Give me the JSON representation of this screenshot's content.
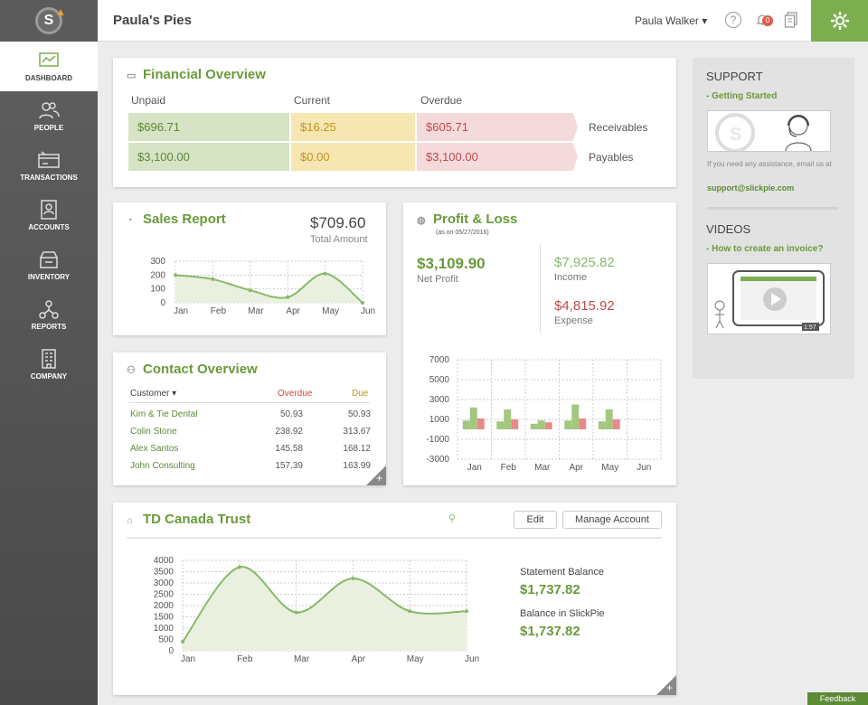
{
  "app": {
    "title": "Paula's Pies",
    "user": "Paula Walker ▾",
    "notifications": "0",
    "brand_color": "#7cae50"
  },
  "nav": [
    {
      "label": "DASHBOARD",
      "icon": "dashboard-icon",
      "active": true
    },
    {
      "label": "PEOPLE",
      "icon": "people-icon"
    },
    {
      "label": "TRANSACTIONS",
      "icon": "transactions-icon"
    },
    {
      "label": "ACCOUNTS",
      "icon": "accounts-icon"
    },
    {
      "label": "INVENTORY",
      "icon": "inventory-icon"
    },
    {
      "label": "REPORTS",
      "icon": "reports-icon"
    },
    {
      "label": "COMPANY",
      "icon": "company-icon"
    }
  ],
  "financial": {
    "title": "Financial Overview",
    "headers": [
      "Unpaid",
      "Current",
      "Overdue"
    ],
    "receivables": {
      "label": "Receivables",
      "unpaid": "$696.71",
      "current": "$16.25",
      "overdue": "$605.71"
    },
    "payables": {
      "label": "Payables",
      "unpaid": "$3,100.00",
      "current": "$0.00",
      "overdue": "$3,100.00"
    }
  },
  "sales": {
    "title": "Sales Report",
    "amount": "$709.60",
    "amount_label": "Total Amount"
  },
  "pl": {
    "title": "Profit & Loss",
    "date": "(as on 05/27/2016)",
    "net": "$3,109.90",
    "net_label": "Net Profit",
    "income": "$7,925.82",
    "income_label": "Income",
    "expense": "$4,815.92",
    "expense_label": "Expense"
  },
  "contacts": {
    "title": "Contact Overview",
    "headers": {
      "customer": "Customer ▾",
      "overdue": "Overdue",
      "due": "Due"
    },
    "rows": [
      {
        "name": "Kim & Tie Dental",
        "overdue": "50.93",
        "due": "50.93"
      },
      {
        "name": "Colin Stone",
        "overdue": "238.92",
        "due": "313.67"
      },
      {
        "name": "Alex Santos",
        "overdue": "145.58",
        "due": "168.12"
      },
      {
        "name": "John Consulting",
        "overdue": "157.39",
        "due": "163.99"
      }
    ]
  },
  "bank": {
    "title": "TD Canada Trust",
    "edit": "Edit",
    "manage": "Manage Account",
    "statement_label": "Statement Balance",
    "statement": "$1,737.82",
    "slickpie_label": "Balance in SlickPie",
    "slickpie": "$1,737.82"
  },
  "support": {
    "title": "SUPPORT",
    "link": "- Getting Started",
    "help": "If you need any assistance, email us at",
    "email": "support@slickpie.com",
    "videos": "VIDEOS",
    "video_link": "- How to create an invoice?",
    "duration": "1:57"
  },
  "feedback": "Feedback",
  "chart_data": [
    {
      "id": "sales",
      "type": "line",
      "categories": [
        "Jan",
        "Feb",
        "Mar",
        "Apr",
        "May",
        "Jun"
      ],
      "series": [
        {
          "values": [
            200,
            170,
            90,
            40,
            210,
            0
          ]
        }
      ],
      "yticks": [
        "300",
        "200",
        "100",
        "0"
      ],
      "ylim": [
        0,
        300
      ],
      "grid": true
    },
    {
      "id": "pl",
      "type": "bar",
      "categories": [
        "Jan",
        "Feb",
        "Mar",
        "Apr",
        "May",
        "Jun"
      ],
      "series": [
        {
          "name": "Income",
          "values": [
            2200,
            2000,
            900,
            2500,
            2000,
            0
          ],
          "color": "#a3c77e"
        },
        {
          "name": "Expense",
          "values": [
            1100,
            1000,
            700,
            1100,
            1000,
            0
          ],
          "color": "#e88a8a"
        }
      ],
      "yticks": [
        "7000",
        "5000",
        "3000",
        "1000",
        "-1000",
        "-3000"
      ],
      "ylim": [
        -3000,
        7000
      ],
      "grid": true
    },
    {
      "id": "bank",
      "type": "area",
      "categories": [
        "Jan",
        "Feb",
        "Mar",
        "Apr",
        "May",
        "Jun"
      ],
      "series": [
        {
          "values": [
            400,
            3700,
            1700,
            3200,
            1750,
            1750
          ]
        }
      ],
      "yticks": [
        "4000",
        "3500",
        "3000",
        "2500",
        "2000",
        "1500",
        "1000",
        "500",
        "0"
      ],
      "ylim": [
        0,
        4000
      ],
      "grid": true
    }
  ]
}
